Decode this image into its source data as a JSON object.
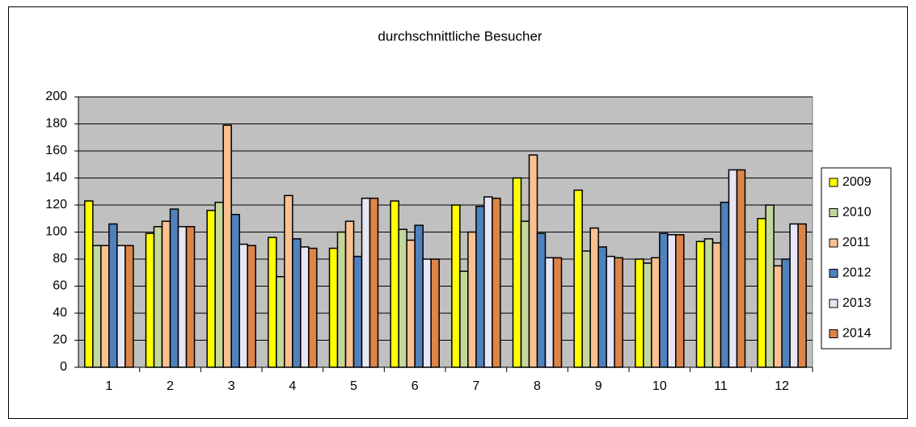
{
  "chart_data": {
    "type": "bar",
    "title": "durchschnittliche  Besucher",
    "categories": [
      "1",
      "2",
      "3",
      "4",
      "5",
      "6",
      "7",
      "8",
      "9",
      "10",
      "11",
      "12"
    ],
    "series": [
      {
        "name": "2009",
        "color": "#ffff00",
        "values": [
          123,
          99,
          116,
          96,
          88,
          123,
          120,
          140,
          131,
          80,
          93,
          110
        ]
      },
      {
        "name": "2010",
        "color": "#c3d69b",
        "values": [
          90,
          104,
          122,
          67,
          100,
          102,
          71,
          108,
          86,
          77,
          95,
          120
        ]
      },
      {
        "name": "2011",
        "color": "#fac090",
        "values": [
          90,
          108,
          179,
          127,
          108,
          94,
          100,
          157,
          103,
          81,
          92,
          75
        ]
      },
      {
        "name": "2012",
        "color": "#4f81bd",
        "values": [
          106,
          117,
          113,
          95,
          82,
          105,
          119,
          99,
          89,
          99,
          122,
          80
        ]
      },
      {
        "name": "2013",
        "color": "#e6e6f5",
        "values": [
          90,
          104,
          91,
          89,
          125,
          80,
          126,
          81,
          82,
          98,
          146,
          106
        ]
      },
      {
        "name": "2014",
        "color": "#dd8448",
        "values": [
          90,
          104,
          90,
          88,
          125,
          80,
          125,
          81,
          81,
          98,
          146,
          106
        ]
      }
    ],
    "ylim": [
      0,
      200
    ],
    "yticks": [
      0,
      20,
      40,
      60,
      80,
      100,
      120,
      140,
      160,
      180,
      200
    ],
    "grid": true,
    "legend": "right"
  }
}
